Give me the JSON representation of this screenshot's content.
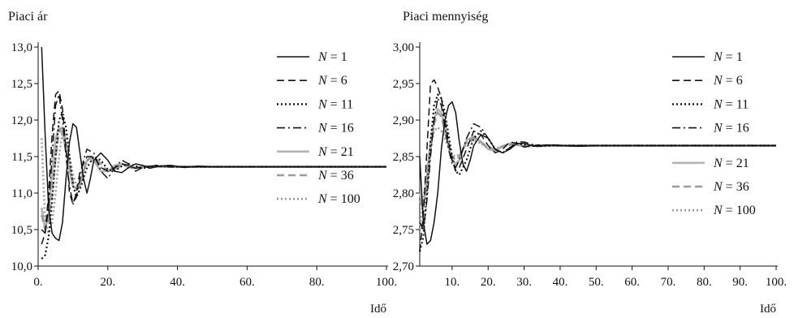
{
  "chart_data": [
    {
      "type": "line",
      "title": "Piaci ár",
      "xlabel": "Idő",
      "ylabel": "",
      "xlim": [
        0,
        100
      ],
      "ylim": [
        10.0,
        13.0
      ],
      "x_ticks": [
        "0.",
        "20.",
        "40.",
        "60.",
        "80.",
        "100."
      ],
      "y_ticks": [
        "10,0",
        "10,5",
        "11,0",
        "11,5",
        "12,0",
        "12,5",
        "13,0"
      ],
      "legend_position": "right",
      "series": [
        {
          "name": "N = 1",
          "color": "#111111",
          "dash": "solid",
          "x": [
            1,
            2,
            3,
            4,
            5,
            6,
            7,
            8,
            9,
            10,
            11,
            12,
            13,
            14,
            15,
            16,
            18,
            20,
            22,
            24,
            26,
            28,
            30,
            32,
            35,
            38,
            42,
            46,
            50,
            60,
            70,
            80,
            90,
            100
          ],
          "y": [
            13.0,
            11.8,
            10.8,
            10.45,
            10.38,
            10.35,
            10.6,
            11.2,
            11.7,
            11.95,
            11.9,
            11.55,
            11.2,
            11.0,
            11.2,
            11.45,
            11.55,
            11.45,
            11.3,
            11.28,
            11.35,
            11.4,
            11.38,
            11.34,
            11.37,
            11.38,
            11.35,
            11.37,
            11.36,
            11.36,
            11.36,
            11.36,
            11.36,
            11.36
          ]
        },
        {
          "name": "N = 6",
          "color": "#111111",
          "dash": "dashed",
          "x": [
            1,
            2,
            3,
            4,
            5,
            6,
            7,
            8,
            9,
            10,
            11,
            12,
            14,
            16,
            18,
            20,
            22,
            24,
            26,
            28,
            30,
            34,
            38,
            42,
            50,
            60,
            80,
            100
          ],
          "y": [
            10.3,
            10.45,
            11.0,
            11.8,
            12.35,
            12.4,
            12.15,
            11.6,
            11.0,
            10.85,
            11.0,
            11.3,
            11.5,
            11.5,
            11.35,
            11.3,
            11.35,
            11.4,
            11.38,
            11.34,
            11.36,
            11.37,
            11.36,
            11.36,
            11.36,
            11.36,
            11.36,
            11.36
          ]
        },
        {
          "name": "N = 11",
          "color": "#111111",
          "dash": "dotted",
          "x": [
            1,
            2,
            3,
            4,
            5,
            6,
            7,
            8,
            9,
            10,
            11,
            12,
            14,
            16,
            18,
            20,
            22,
            24,
            26,
            28,
            30,
            34,
            38,
            42,
            50,
            60,
            80,
            100
          ],
          "y": [
            10.1,
            10.15,
            10.4,
            10.9,
            11.5,
            12.0,
            12.1,
            11.9,
            11.5,
            11.1,
            10.95,
            11.05,
            11.35,
            11.5,
            11.45,
            11.32,
            11.3,
            11.37,
            11.4,
            11.37,
            11.34,
            11.37,
            11.36,
            11.36,
            11.36,
            11.36,
            11.36,
            11.36
          ]
        },
        {
          "name": "N = 16",
          "color": "#111111",
          "dash": "dashdot",
          "x": [
            1,
            2,
            3,
            4,
            5,
            6,
            7,
            8,
            9,
            10,
            11,
            12,
            13,
            14,
            16,
            18,
            20,
            22,
            24,
            26,
            28,
            30,
            34,
            38,
            42,
            50,
            60,
            80,
            100
          ],
          "y": [
            10.5,
            10.45,
            10.8,
            11.5,
            12.2,
            12.35,
            12.0,
            11.5,
            11.1,
            10.85,
            10.95,
            11.2,
            11.45,
            11.6,
            11.55,
            11.3,
            11.2,
            11.35,
            11.45,
            11.4,
            11.3,
            11.35,
            11.38,
            11.36,
            11.36,
            11.36,
            11.36,
            11.36,
            11.36
          ]
        },
        {
          "name": "N = 21",
          "color": "#b3b3b3",
          "dash": "solid",
          "x": [
            1,
            2,
            3,
            4,
            5,
            6,
            7,
            8,
            9,
            10,
            11,
            12,
            13,
            14,
            15,
            16,
            18,
            20,
            22,
            24,
            26,
            28,
            30,
            34,
            38,
            42,
            50,
            60,
            80,
            100
          ],
          "y": [
            10.8,
            10.5,
            10.7,
            11.3,
            11.75,
            11.9,
            11.8,
            11.6,
            11.3,
            11.1,
            11.05,
            11.1,
            11.3,
            11.45,
            11.5,
            11.45,
            11.3,
            11.3,
            11.38,
            11.4,
            11.35,
            11.34,
            11.37,
            11.36,
            11.36,
            11.36,
            11.36,
            11.36,
            11.36,
            11.36
          ]
        },
        {
          "name": "N = 36",
          "color": "#9a9a9a",
          "dash": "dashed",
          "x": [
            1,
            2,
            3,
            4,
            5,
            6,
            7,
            8,
            9,
            10,
            11,
            12,
            13,
            14,
            16,
            18,
            20,
            22,
            24,
            26,
            28,
            30,
            34,
            38,
            42,
            50,
            60,
            80,
            100
          ],
          "y": [
            10.7,
            10.5,
            10.6,
            11.0,
            11.5,
            11.85,
            11.9,
            11.7,
            11.4,
            11.15,
            11.05,
            11.1,
            11.3,
            11.45,
            11.5,
            11.4,
            11.3,
            11.33,
            11.38,
            11.38,
            11.35,
            11.35,
            11.37,
            11.36,
            11.36,
            11.36,
            11.36,
            11.36,
            11.36
          ]
        },
        {
          "name": "N = 100",
          "color": "#9a9a9a",
          "dash": "dotted",
          "x": [
            1,
            2,
            3,
            4,
            5,
            6,
            7,
            8,
            9,
            10,
            11,
            12,
            13,
            14,
            16,
            18,
            20,
            22,
            24,
            26,
            28,
            30,
            34,
            38,
            42,
            50,
            60,
            80,
            100
          ],
          "y": [
            11.75,
            10.6,
            10.45,
            10.6,
            11.0,
            11.5,
            11.85,
            11.75,
            11.5,
            11.25,
            11.1,
            11.15,
            11.3,
            11.45,
            11.45,
            11.35,
            11.3,
            11.35,
            11.4,
            11.37,
            11.34,
            11.36,
            11.37,
            11.36,
            11.36,
            11.36,
            11.36,
            11.36,
            11.36
          ]
        }
      ]
    },
    {
      "type": "line",
      "title": "Piaci mennyiség",
      "xlabel": "Idő",
      "ylabel": "",
      "xlim": [
        1,
        100
      ],
      "ylim": [
        2.7,
        3.0
      ],
      "x_ticks": [
        "10.",
        "20.",
        "30.",
        "40.",
        "50.",
        "60.",
        "70.",
        "80.",
        "90.",
        "100."
      ],
      "y_ticks": [
        "2,70",
        "2,75",
        "2,80",
        "2,85",
        "2,90",
        "2,95",
        "3,00"
      ],
      "legend_position": "right",
      "series": [
        {
          "name": "N = 1",
          "color": "#111111",
          "dash": "solid",
          "x": [
            1,
            2,
            3,
            4,
            5,
            6,
            7,
            8,
            9,
            10,
            11,
            12,
            13,
            14,
            15,
            16,
            18,
            20,
            22,
            24,
            26,
            28,
            30,
            33,
            36,
            40,
            45,
            50,
            60,
            70,
            80,
            90,
            100
          ],
          "y": [
            2.85,
            2.76,
            2.73,
            2.735,
            2.76,
            2.8,
            2.86,
            2.9,
            2.92,
            2.925,
            2.91,
            2.87,
            2.84,
            2.83,
            2.845,
            2.865,
            2.88,
            2.875,
            2.86,
            2.855,
            2.86,
            2.868,
            2.868,
            2.864,
            2.866,
            2.865,
            2.864,
            2.865,
            2.865,
            2.865,
            2.865,
            2.865,
            2.865
          ]
        },
        {
          "name": "N = 6",
          "color": "#111111",
          "dash": "dashed",
          "x": [
            1,
            2,
            3,
            4,
            5,
            6,
            7,
            8,
            9,
            10,
            11,
            12,
            14,
            16,
            18,
            20,
            22,
            24,
            26,
            28,
            30,
            34,
            38,
            42,
            50,
            60,
            80,
            100
          ],
          "y": [
            2.72,
            2.77,
            2.86,
            2.95,
            2.955,
            2.945,
            2.93,
            2.9,
            2.87,
            2.845,
            2.83,
            2.835,
            2.86,
            2.885,
            2.88,
            2.865,
            2.855,
            2.86,
            2.87,
            2.868,
            2.863,
            2.866,
            2.865,
            2.865,
            2.865,
            2.865,
            2.865,
            2.865
          ]
        },
        {
          "name": "N = 11",
          "color": "#111111",
          "dash": "dotted",
          "x": [
            1,
            2,
            3,
            4,
            5,
            6,
            7,
            8,
            9,
            10,
            11,
            12,
            14,
            16,
            18,
            20,
            22,
            24,
            26,
            28,
            30,
            34,
            38,
            42,
            50,
            60,
            80,
            100
          ],
          "y": [
            2.72,
            2.74,
            2.8,
            2.87,
            2.92,
            2.935,
            2.93,
            2.91,
            2.88,
            2.85,
            2.83,
            2.825,
            2.845,
            2.875,
            2.885,
            2.875,
            2.86,
            2.855,
            2.862,
            2.868,
            2.866,
            2.864,
            2.865,
            2.865,
            2.865,
            2.865,
            2.865,
            2.865
          ]
        },
        {
          "name": "N = 16",
          "color": "#111111",
          "dash": "dashdot",
          "x": [
            1,
            2,
            3,
            4,
            5,
            6,
            7,
            8,
            9,
            10,
            11,
            12,
            13,
            14,
            16,
            18,
            20,
            22,
            24,
            26,
            28,
            30,
            34,
            38,
            42,
            50,
            60,
            80,
            100
          ],
          "y": [
            2.76,
            2.75,
            2.79,
            2.85,
            2.9,
            2.93,
            2.92,
            2.89,
            2.86,
            2.84,
            2.835,
            2.845,
            2.86,
            2.875,
            2.895,
            2.89,
            2.875,
            2.86,
            2.855,
            2.862,
            2.87,
            2.87,
            2.864,
            2.866,
            2.865,
            2.865,
            2.865,
            2.865,
            2.865
          ]
        },
        {
          "name": "N = 21",
          "color": "#b3b3b3",
          "dash": "solid",
          "x": [
            1,
            2,
            3,
            4,
            5,
            6,
            7,
            8,
            9,
            10,
            11,
            12,
            13,
            14,
            16,
            18,
            20,
            22,
            24,
            26,
            28,
            30,
            34,
            38,
            42,
            50,
            60,
            80,
            100
          ],
          "y": [
            2.8,
            2.78,
            2.82,
            2.87,
            2.9,
            2.915,
            2.91,
            2.89,
            2.865,
            2.845,
            2.84,
            2.845,
            2.86,
            2.872,
            2.878,
            2.87,
            2.86,
            2.858,
            2.864,
            2.868,
            2.866,
            2.864,
            2.865,
            2.865,
            2.865,
            2.865,
            2.865,
            2.865,
            2.865
          ]
        },
        {
          "name": "N = 36",
          "color": "#9a9a9a",
          "dash": "dashed",
          "x": [
            1,
            2,
            3,
            4,
            5,
            6,
            7,
            8,
            9,
            10,
            11,
            12,
            13,
            14,
            16,
            18,
            20,
            22,
            24,
            26,
            28,
            30,
            34,
            38,
            42,
            50,
            60,
            80,
            100
          ],
          "y": [
            2.79,
            2.78,
            2.81,
            2.86,
            2.895,
            2.91,
            2.905,
            2.885,
            2.865,
            2.85,
            2.845,
            2.85,
            2.86,
            2.87,
            2.876,
            2.87,
            2.862,
            2.86,
            2.864,
            2.867,
            2.866,
            2.864,
            2.865,
            2.865,
            2.865,
            2.865,
            2.865,
            2.865,
            2.865
          ]
        },
        {
          "name": "N = 100",
          "color": "#9a9a9a",
          "dash": "dotted",
          "x": [
            1,
            2,
            3,
            4,
            5,
            6,
            7,
            8,
            9,
            10,
            11,
            12,
            13,
            14,
            16,
            18,
            20,
            22,
            24,
            26,
            28,
            30,
            34,
            38,
            42,
            50,
            60,
            80,
            100
          ],
          "y": [
            2.75,
            2.79,
            2.83,
            2.865,
            2.885,
            2.89,
            2.885,
            2.875,
            2.862,
            2.852,
            2.85,
            2.853,
            2.86,
            2.868,
            2.872,
            2.868,
            2.862,
            2.861,
            2.864,
            2.866,
            2.866,
            2.864,
            2.865,
            2.865,
            2.865,
            2.865,
            2.865,
            2.865,
            2.865
          ]
        }
      ]
    }
  ]
}
